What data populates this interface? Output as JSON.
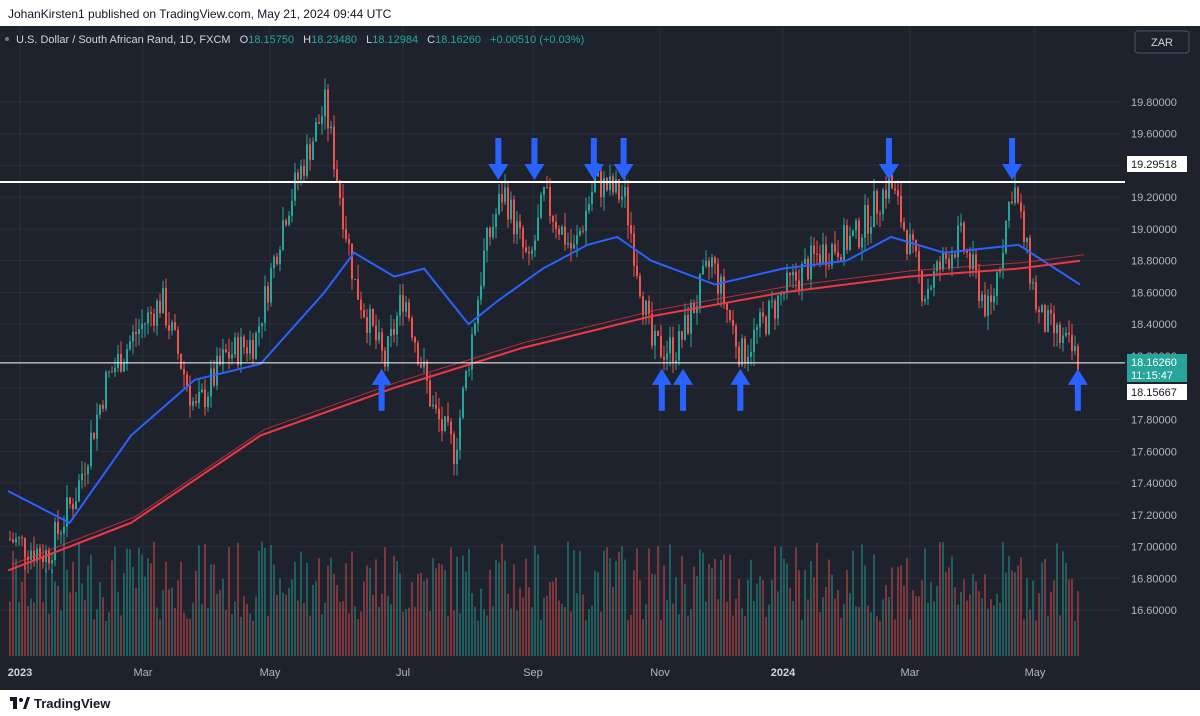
{
  "header": {
    "published_text": "JohanKirsten1 published on TradingView.com, May 21, 2024 09:44 UTC"
  },
  "legend": {
    "symbol": "U.S. Dollar / South African Rand, 1D, FXCM",
    "open_label": "O",
    "open": "18.15750",
    "high_label": "H",
    "high": "18.23480",
    "low_label": "L",
    "low": "18.12984",
    "close_label": "C",
    "close": "18.16260",
    "change": "+0.00510 (+0.03%)"
  },
  "currency_button": "ZAR",
  "price_labels": {
    "resistance": "19.29518",
    "current_price": "18.16260",
    "countdown": "11:15:47",
    "support": "18.15667"
  },
  "footer": {
    "brand": "TradingView"
  },
  "colors": {
    "background": "#1e222d",
    "bull": "#26a69a",
    "bear": "#ef5350",
    "blue_ma": "#2962ff",
    "red_ma": "#f23645",
    "arrow": "#2962ff",
    "level_line": "#ffffff"
  },
  "chart_data": {
    "type": "candlestick",
    "title": "U.S. Dollar / South African Rand, 1D, FXCM",
    "y_axis": {
      "range": [
        16.45,
        19.95
      ],
      "ticks": [
        "19.80000",
        "19.60000",
        "19.40000",
        "19.20000",
        "19.00000",
        "18.80000",
        "18.60000",
        "18.40000",
        "18.20000",
        "18.00000",
        "17.80000",
        "17.60000",
        "17.40000",
        "17.20000",
        "17.00000",
        "16.80000",
        "16.60000"
      ]
    },
    "x_axis": {
      "ticks": [
        {
          "label": "2023",
          "bold": true
        },
        {
          "label": "Mar"
        },
        {
          "label": "May"
        },
        {
          "label": "Jul"
        },
        {
          "label": "Sep"
        },
        {
          "label": "Nov"
        },
        {
          "label": "2024",
          "bold": true
        },
        {
          "label": "Mar"
        },
        {
          "label": "May"
        }
      ]
    },
    "close_path": [
      {
        "date": "2023-01-02",
        "close": 17.05
      },
      {
        "date": "2023-01-20",
        "close": 16.95
      },
      {
        "date": "2023-02-03",
        "close": 17.35
      },
      {
        "date": "2023-02-17",
        "close": 18.05
      },
      {
        "date": "2023-03-03",
        "close": 18.35
      },
      {
        "date": "2023-03-15",
        "close": 18.55
      },
      {
        "date": "2023-03-31",
        "close": 17.85
      },
      {
        "date": "2023-04-14",
        "close": 18.2
      },
      {
        "date": "2023-04-28",
        "close": 18.3
      },
      {
        "date": "2023-05-12",
        "close": 19.1
      },
      {
        "date": "2023-05-31",
        "close": 19.78
      },
      {
        "date": "2023-06-14",
        "close": 18.65
      },
      {
        "date": "2023-06-28",
        "close": 18.15
      },
      {
        "date": "2023-07-07",
        "close": 18.6
      },
      {
        "date": "2023-07-21",
        "close": 17.85
      },
      {
        "date": "2023-07-31",
        "close": 17.6
      },
      {
        "date": "2023-08-14",
        "close": 18.85
      },
      {
        "date": "2023-08-23",
        "close": 19.25
      },
      {
        "date": "2023-09-04",
        "close": 18.75
      },
      {
        "date": "2023-09-11",
        "close": 19.2
      },
      {
        "date": "2023-09-25",
        "close": 18.85
      },
      {
        "date": "2023-10-05",
        "close": 19.3
      },
      {
        "date": "2023-10-19",
        "close": 19.2
      },
      {
        "date": "2023-11-01",
        "close": 18.25
      },
      {
        "date": "2023-11-13",
        "close": 18.25
      },
      {
        "date": "2023-11-29",
        "close": 18.8
      },
      {
        "date": "2023-12-13",
        "close": 18.2
      },
      {
        "date": "2024-01-02",
        "close": 18.6
      },
      {
        "date": "2024-01-19",
        "close": 18.85
      },
      {
        "date": "2024-02-05",
        "close": 18.95
      },
      {
        "date": "2024-02-21",
        "close": 19.3
      },
      {
        "date": "2024-03-08",
        "close": 18.6
      },
      {
        "date": "2024-03-25",
        "close": 18.95
      },
      {
        "date": "2024-04-08",
        "close": 18.45
      },
      {
        "date": "2024-04-19",
        "close": 19.3
      },
      {
        "date": "2024-05-01",
        "close": 18.45
      },
      {
        "date": "2024-05-21",
        "close": 18.1626
      }
    ],
    "moving_averages": [
      {
        "color": "blue",
        "points": [
          {
            "date": "2023-01-02",
            "value": 17.35
          },
          {
            "date": "2023-01-31",
            "value": 17.15
          },
          {
            "date": "2023-03-01",
            "value": 17.7
          },
          {
            "date": "2023-03-31",
            "value": 18.05
          },
          {
            "date": "2023-05-01",
            "value": 18.15
          },
          {
            "date": "2023-05-31",
            "value": 18.6
          },
          {
            "date": "2023-06-14",
            "value": 18.85
          },
          {
            "date": "2023-07-03",
            "value": 18.7
          },
          {
            "date": "2023-07-17",
            "value": 18.75
          },
          {
            "date": "2023-08-07",
            "value": 18.4
          },
          {
            "date": "2023-08-21",
            "value": 18.55
          },
          {
            "date": "2023-09-11",
            "value": 18.75
          },
          {
            "date": "2023-10-02",
            "value": 18.9
          },
          {
            "date": "2023-10-16",
            "value": 18.95
          },
          {
            "date": "2023-11-01",
            "value": 18.8
          },
          {
            "date": "2023-12-01",
            "value": 18.65
          },
          {
            "date": "2024-01-02",
            "value": 18.75
          },
          {
            "date": "2024-02-01",
            "value": 18.8
          },
          {
            "date": "2024-02-22",
            "value": 18.95
          },
          {
            "date": "2024-03-18",
            "value": 18.85
          },
          {
            "date": "2024-04-22",
            "value": 18.9
          },
          {
            "date": "2024-05-21",
            "value": 18.65
          }
        ]
      },
      {
        "color": "red",
        "points": [
          {
            "date": "2023-01-02",
            "value": 16.85
          },
          {
            "date": "2023-03-01",
            "value": 17.15
          },
          {
            "date": "2023-05-01",
            "value": 17.7
          },
          {
            "date": "2023-07-03",
            "value": 18.0
          },
          {
            "date": "2023-09-01",
            "value": 18.25
          },
          {
            "date": "2023-11-01",
            "value": 18.45
          },
          {
            "date": "2024-01-02",
            "value": 18.6
          },
          {
            "date": "2024-03-01",
            "value": 18.7
          },
          {
            "date": "2024-04-22",
            "value": 18.75
          },
          {
            "date": "2024-05-21",
            "value": 18.8
          }
        ]
      }
    ],
    "horizontal_levels": [
      {
        "name": "resistance",
        "value": 19.29518
      },
      {
        "name": "support",
        "value": 18.15667
      }
    ],
    "arrows": [
      {
        "direction": "down",
        "date": "2023-08-21"
      },
      {
        "direction": "down",
        "date": "2023-09-07"
      },
      {
        "direction": "down",
        "date": "2023-10-05"
      },
      {
        "direction": "down",
        "date": "2023-10-19"
      },
      {
        "direction": "down",
        "date": "2024-02-21"
      },
      {
        "direction": "down",
        "date": "2024-04-19"
      },
      {
        "direction": "up",
        "date": "2023-06-27"
      },
      {
        "direction": "up",
        "date": "2023-11-06"
      },
      {
        "direction": "up",
        "date": "2023-11-16"
      },
      {
        "direction": "up",
        "date": "2023-12-13"
      },
      {
        "direction": "up",
        "date": "2024-05-20"
      }
    ]
  }
}
